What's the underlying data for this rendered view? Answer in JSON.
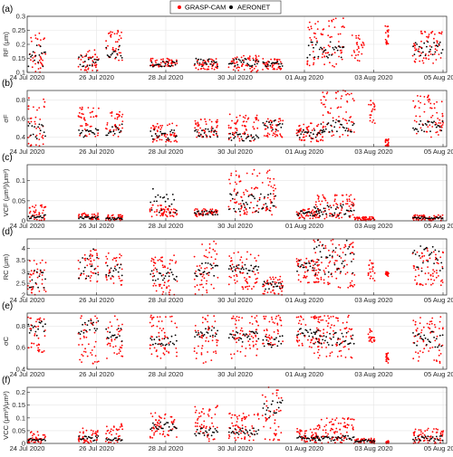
{
  "chart_data": {
    "type": "scatter",
    "legend": {
      "position": "top-center",
      "entries": [
        {
          "label": "GRASP-CAM",
          "color": "#ff0000"
        },
        {
          "label": "AERONET",
          "color": "#000000"
        }
      ]
    },
    "x_axis": {
      "tick_labels": [
        "24 Jul 2020",
        "26 Jul 2020",
        "28 Jul 2020",
        "30 Jul 2020",
        "01 Aug 2020",
        "03 Aug 2020",
        "05 Aug 2020"
      ],
      "range_days": [
        0,
        12.3
      ],
      "grid": true
    },
    "colors": {
      "grasp": "#ff0000",
      "aeronet": "#000000",
      "grid": "#e5e5e5",
      "axis": "#262626"
    },
    "panels": [
      {
        "letter": "(a)",
        "ylabel": "RF (μm)",
        "ylim": [
          0.1,
          0.3
        ],
        "yticks": [
          0.1,
          0.15,
          0.2,
          0.25,
          0.3
        ],
        "clusters": [
          {
            "x": [
              0.02,
              0.55
            ],
            "grasp": [
              0.1,
              0.24
            ],
            "aeronet": [
              0.12,
              0.2
            ]
          },
          {
            "x": [
              1.5,
              2.1
            ],
            "grasp": [
              0.1,
              0.18
            ],
            "aeronet": [
              0.11,
              0.16
            ]
          },
          {
            "x": [
              2.3,
              2.8
            ],
            "grasp": [
              0.14,
              0.25
            ],
            "aeronet": [
              0.15,
              0.2
            ]
          },
          {
            "x": [
              3.6,
              4.4
            ],
            "grasp": [
              0.12,
              0.15
            ],
            "aeronet": [
              0.12,
              0.14
            ]
          },
          {
            "x": [
              4.9,
              5.6
            ],
            "grasp": [
              0.11,
              0.15
            ],
            "aeronet": [
              0.12,
              0.15
            ]
          },
          {
            "x": [
              5.9,
              6.8
            ],
            "grasp": [
              0.1,
              0.16
            ],
            "aeronet": [
              0.12,
              0.15
            ]
          },
          {
            "x": [
              6.9,
              7.5
            ],
            "grasp": [
              0.11,
              0.15
            ],
            "aeronet": [
              0.12,
              0.14
            ]
          },
          {
            "x": [
              8.2,
              9.3
            ],
            "grasp": [
              0.12,
              0.3
            ],
            "aeronet": [
              0.15,
              0.21
            ]
          },
          {
            "x": [
              9.5,
              9.9
            ],
            "grasp": [
              0.14,
              0.24
            ],
            "aeronet": null
          },
          {
            "x": [
              10.5,
              10.6
            ],
            "grasp": [
              0.2,
              0.27
            ],
            "aeronet": null
          },
          {
            "x": [
              11.3,
              12.2
            ],
            "grasp": [
              0.13,
              0.25
            ],
            "aeronet": [
              0.16,
              0.21
            ]
          }
        ]
      },
      {
        "letter": "(b)",
        "ylabel": "σF",
        "ylim": [
          0.3,
          0.9
        ],
        "yticks": [
          0.4,
          0.6,
          0.8
        ],
        "clusters": [
          {
            "x": [
              0.02,
              0.55
            ],
            "grasp": [
              0.3,
              0.85
            ],
            "aeronet": [
              0.38,
              0.55
            ]
          },
          {
            "x": [
              1.5,
              2.1
            ],
            "grasp": [
              0.38,
              0.72
            ],
            "aeronet": [
              0.4,
              0.5
            ]
          },
          {
            "x": [
              2.3,
              2.8
            ],
            "grasp": [
              0.4,
              0.7
            ],
            "aeronet": [
              0.42,
              0.55
            ]
          },
          {
            "x": [
              3.6,
              4.4
            ],
            "grasp": [
              0.35,
              0.55
            ],
            "aeronet": [
              0.36,
              0.48
            ]
          },
          {
            "x": [
              4.9,
              5.6
            ],
            "grasp": [
              0.4,
              0.6
            ],
            "aeronet": [
              0.4,
              0.5
            ]
          },
          {
            "x": [
              5.9,
              6.8
            ],
            "grasp": [
              0.35,
              0.65
            ],
            "aeronet": [
              0.36,
              0.45
            ]
          },
          {
            "x": [
              6.9,
              7.5
            ],
            "grasp": [
              0.4,
              0.6
            ],
            "aeronet": [
              0.45,
              0.6
            ]
          },
          {
            "x": [
              7.9,
              8.7
            ],
            "grasp": [
              0.35,
              0.55
            ],
            "aeronet": [
              0.38,
              0.48
            ]
          },
          {
            "x": [
              8.6,
              9.6
            ],
            "grasp": [
              0.4,
              0.9
            ],
            "aeronet": [
              0.45,
              0.58
            ]
          },
          {
            "x": [
              10.0,
              10.2
            ],
            "grasp": [
              0.55,
              0.8
            ],
            "aeronet": null
          },
          {
            "x": [
              10.5,
              10.6
            ],
            "grasp": [
              0.3,
              0.38
            ],
            "aeronet": null
          },
          {
            "x": [
              11.3,
              12.2
            ],
            "grasp": [
              0.4,
              0.85
            ],
            "aeronet": [
              0.45,
              0.58
            ]
          }
        ]
      },
      {
        "letter": "(c)",
        "ylabel": "VCF (μm³)/μm²)",
        "ylim": [
          0,
          0.14
        ],
        "yticks": [
          0,
          0.05,
          0.1
        ],
        "clusters": [
          {
            "x": [
              0.02,
              0.55
            ],
            "grasp": [
              0.0,
              0.04
            ],
            "aeronet": [
              0.005,
              0.015
            ]
          },
          {
            "x": [
              1.5,
              2.1
            ],
            "grasp": [
              0.003,
              0.02
            ],
            "aeronet": [
              0.005,
              0.01
            ]
          },
          {
            "x": [
              2.3,
              2.8
            ],
            "grasp": [
              0.0,
              0.015
            ],
            "aeronet": [
              0.003,
              0.008
            ]
          },
          {
            "x": [
              3.6,
              4.4
            ],
            "grasp": [
              0.01,
              0.04
            ],
            "aeronet": [
              0.015,
              0.08
            ]
          },
          {
            "x": [
              4.9,
              5.6
            ],
            "grasp": [
              0.01,
              0.03
            ],
            "aeronet": [
              0.015,
              0.025
            ]
          },
          {
            "x": [
              5.9,
              7.3
            ],
            "grasp": [
              0.01,
              0.13
            ],
            "aeronet": [
              0.02,
              0.07
            ]
          },
          {
            "x": [
              7.9,
              8.6
            ],
            "grasp": [
              0.005,
              0.03
            ],
            "aeronet": [
              0.01,
              0.025
            ]
          },
          {
            "x": [
              8.4,
              9.6
            ],
            "grasp": [
              0.005,
              0.065
            ],
            "aeronet": [
              0.01,
              0.04
            ]
          },
          {
            "x": [
              9.6,
              10.2
            ],
            "grasp": [
              0.0,
              0.01
            ],
            "aeronet": null
          },
          {
            "x": [
              11.3,
              12.2
            ],
            "grasp": [
              0.0,
              0.015
            ],
            "aeronet": [
              0.005,
              0.01
            ]
          }
        ]
      },
      {
        "letter": "(d)",
        "ylabel": "RC (μm)",
        "ylim": [
          2,
          4.4
        ],
        "yticks": [
          2,
          2.5,
          3,
          3.5,
          4
        ],
        "clusters": [
          {
            "x": [
              0.02,
              0.55
            ],
            "grasp": [
              2.0,
              3.5
            ],
            "aeronet": [
              2.3,
              3.1
            ]
          },
          {
            "x": [
              1.5,
              2.1
            ],
            "grasp": [
              2.5,
              4.0
            ],
            "aeronet": [
              2.7,
              4.0
            ]
          },
          {
            "x": [
              2.3,
              2.8
            ],
            "grasp": [
              2.4,
              3.8
            ],
            "aeronet": [
              2.8,
              3.3
            ]
          },
          {
            "x": [
              3.6,
              4.4
            ],
            "grasp": [
              2.0,
              3.7
            ],
            "aeronet": [
              2.6,
              3.1
            ]
          },
          {
            "x": [
              4.9,
              5.6
            ],
            "grasp": [
              2.0,
              4.3
            ],
            "aeronet": [
              2.8,
              3.4
            ]
          },
          {
            "x": [
              5.9,
              6.8
            ],
            "grasp": [
              2.2,
              3.9
            ],
            "aeronet": [
              2.9,
              3.3
            ]
          },
          {
            "x": [
              6.9,
              7.5
            ],
            "grasp": [
              2.0,
              2.8
            ],
            "aeronet": [
              2.2,
              2.6
            ]
          },
          {
            "x": [
              7.9,
              8.6
            ],
            "grasp": [
              2.5,
              3.6
            ],
            "aeronet": [
              3.0,
              3.5
            ]
          },
          {
            "x": [
              8.4,
              9.6
            ],
            "grasp": [
              2.3,
              4.4
            ],
            "aeronet": [
              2.8,
              4.4
            ]
          },
          {
            "x": [
              10.0,
              10.2
            ],
            "grasp": [
              2.6,
              3.5
            ],
            "aeronet": null
          },
          {
            "x": [
              10.5,
              10.6
            ],
            "grasp": [
              2.8,
              3.0
            ],
            "aeronet": null
          },
          {
            "x": [
              11.3,
              12.2
            ],
            "grasp": [
              2.4,
              4.0
            ],
            "aeronet": [
              3.0,
              4.1
            ]
          }
        ]
      },
      {
        "letter": "(e)",
        "ylabel": "σC",
        "ylim": [
          0.4,
          0.92
        ],
        "yticks": [
          0.4,
          0.6,
          0.8,
          1
        ],
        "clusters": [
          {
            "x": [
              0.02,
              0.55
            ],
            "grasp": [
              0.55,
              0.9
            ],
            "aeronet": [
              0.7,
              0.85
            ]
          },
          {
            "x": [
              1.5,
              2.1
            ],
            "grasp": [
              0.45,
              0.9
            ],
            "aeronet": [
              0.72,
              0.85
            ]
          },
          {
            "x": [
              2.3,
              2.8
            ],
            "grasp": [
              0.5,
              0.9
            ],
            "aeronet": [
              0.65,
              0.78
            ]
          },
          {
            "x": [
              3.6,
              4.4
            ],
            "grasp": [
              0.5,
              0.9
            ],
            "aeronet": [
              0.62,
              0.72
            ]
          },
          {
            "x": [
              4.9,
              5.6
            ],
            "grasp": [
              0.45,
              0.9
            ],
            "aeronet": [
              0.7,
              0.8
            ]
          },
          {
            "x": [
              5.9,
              6.8
            ],
            "grasp": [
              0.5,
              0.9
            ],
            "aeronet": [
              0.65,
              0.75
            ]
          },
          {
            "x": [
              6.9,
              7.5
            ],
            "grasp": [
              0.62,
              0.9
            ],
            "aeronet": [
              0.6,
              0.72
            ]
          },
          {
            "x": [
              7.9,
              8.6
            ],
            "grasp": [
              0.6,
              0.9
            ],
            "aeronet": [
              0.7,
              0.78
            ]
          },
          {
            "x": [
              8.4,
              9.6
            ],
            "grasp": [
              0.5,
              0.9
            ],
            "aeronet": [
              0.62,
              0.74
            ]
          },
          {
            "x": [
              10.0,
              10.2
            ],
            "grasp": [
              0.65,
              0.78
            ],
            "aeronet": null
          },
          {
            "x": [
              10.5,
              10.6
            ],
            "grasp": [
              0.45,
              0.55
            ],
            "aeronet": null
          },
          {
            "x": [
              11.3,
              12.2
            ],
            "grasp": [
              0.45,
              0.9
            ],
            "aeronet": [
              0.6,
              0.75
            ]
          }
        ]
      },
      {
        "letter": "(f)",
        "ylabel": "VCC (μm³)/μm²)",
        "ylim": [
          0,
          0.22
        ],
        "yticks": [
          0,
          0.05,
          0.1,
          0.15,
          0.2
        ],
        "clusters": [
          {
            "x": [
              0.02,
              0.55
            ],
            "grasp": [
              0.0,
              0.05
            ],
            "aeronet": [
              0.01,
              0.02
            ]
          },
          {
            "x": [
              1.5,
              2.1
            ],
            "grasp": [
              0.0,
              0.06
            ],
            "aeronet": [
              0.01,
              0.03
            ]
          },
          {
            "x": [
              2.3,
              2.8
            ],
            "grasp": [
              0.0,
              0.08
            ],
            "aeronet": [
              0.01,
              0.025
            ]
          },
          {
            "x": [
              3.6,
              4.4
            ],
            "grasp": [
              0.02,
              0.12
            ],
            "aeronet": [
              0.05,
              0.09
            ]
          },
          {
            "x": [
              4.9,
              5.6
            ],
            "grasp": [
              0.0,
              0.15
            ],
            "aeronet": [
              0.03,
              0.06
            ]
          },
          {
            "x": [
              5.9,
              6.8
            ],
            "grasp": [
              0.01,
              0.12
            ],
            "aeronet": [
              0.03,
              0.06
            ]
          },
          {
            "x": [
              6.9,
              7.5
            ],
            "grasp": [
              0.0,
              0.22
            ],
            "aeronet": [
              0.1,
              0.17
            ]
          },
          {
            "x": [
              7.9,
              8.6
            ],
            "grasp": [
              0.0,
              0.06
            ],
            "aeronet": [
              0.01,
              0.03
            ]
          },
          {
            "x": [
              8.4,
              9.6
            ],
            "grasp": [
              0.0,
              0.1
            ],
            "aeronet": [
              0.01,
              0.03
            ]
          },
          {
            "x": [
              9.6,
              10.2
            ],
            "grasp": [
              0.0,
              0.02
            ],
            "aeronet": [
              0.005,
              0.015
            ]
          },
          {
            "x": [
              10.5,
              10.6
            ],
            "grasp": [
              0.0,
              0.01
            ],
            "aeronet": null
          },
          {
            "x": [
              11.3,
              12.2
            ],
            "grasp": [
              0.0,
              0.06
            ],
            "aeronet": [
              0.01,
              0.03
            ]
          }
        ]
      }
    ]
  }
}
